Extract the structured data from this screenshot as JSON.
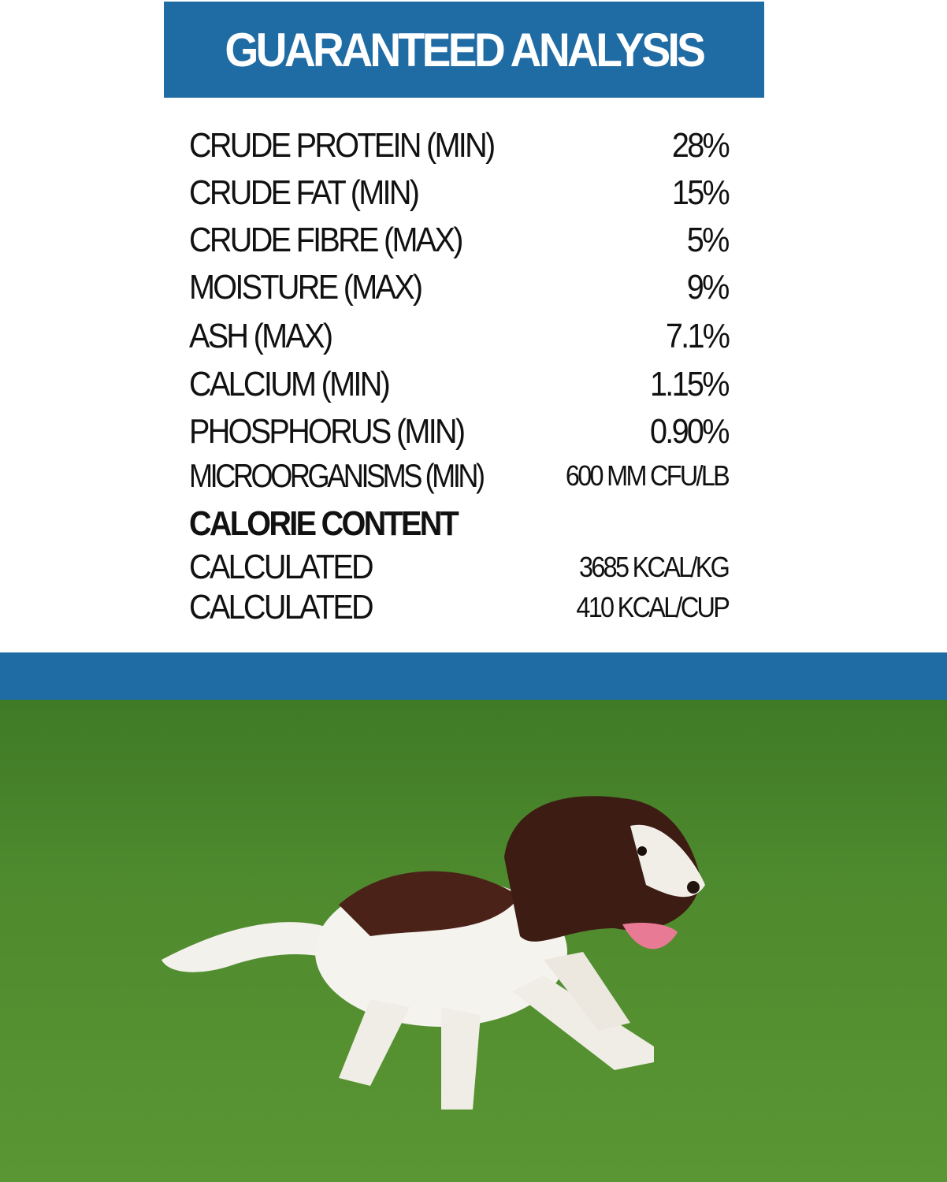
{
  "title": "GUARANTEED ANALYSIS",
  "rows": [
    {
      "label": "CRUDE PROTEIN (MIN)",
      "value": "28%"
    },
    {
      "label": "CRUDE FAT (MIN)",
      "value": "15%"
    },
    {
      "label": "CRUDE FIBRE (MAX)",
      "value": "5%"
    },
    {
      "label": "MOISTURE (MAX)",
      "value": "9%"
    },
    {
      "label": "ASH (MAX)",
      "value": "7.1%"
    },
    {
      "label": "CALCIUM (MIN)",
      "value": "1.15%"
    },
    {
      "label": "PHOSPHORUS (MIN)",
      "value": "0.90%"
    },
    {
      "label": "MICROORGANISMS (MIN)",
      "value": "600 MM CFU/LB"
    }
  ],
  "calorie": {
    "heading": "CALORIE CONTENT",
    "rows": [
      {
        "label": "CALCULATED",
        "value": "3685 KCAL/KG"
      },
      {
        "label": "CALCULATED",
        "value": "410 KCAL/CUP"
      }
    ]
  },
  "colors": {
    "brand_blue": "#1f6ba4",
    "grass": "#4f8a2c"
  }
}
